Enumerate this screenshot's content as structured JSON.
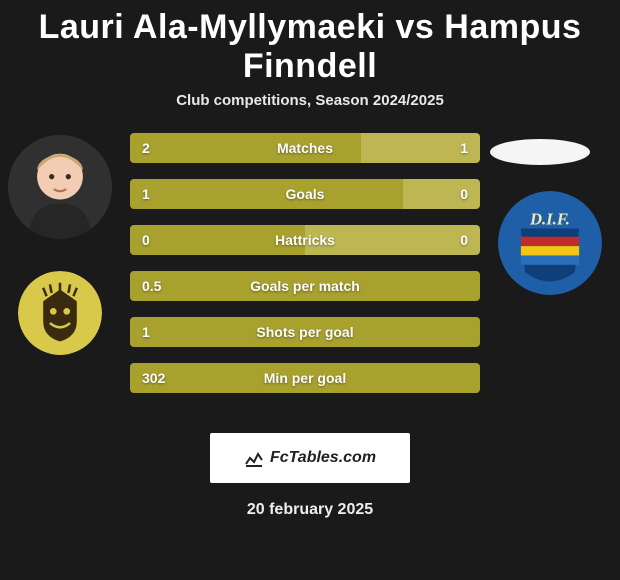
{
  "title": "Lauri Ala-Myllymaeki vs Hampus Finndell",
  "subtitle": "Club competitions, Season 2024/2025",
  "date": "20 february 2025",
  "branding": "FcTables.com",
  "colors": {
    "bar_olive": "#a8a12e",
    "bar_olive_light": "#bdb653",
    "bar_mid_overlay": "#9b942a",
    "bg": "#1a1a1a",
    "oval": "#f5f5f5",
    "team_left_bg": "#d9c94a",
    "team_left_fg": "#3a2a10",
    "team_right_top": "#1f5fa8",
    "team_right_stripe1": "#c22b2b",
    "team_right_stripe2": "#f3c514",
    "team_right_stripe3": "#1f5fa8"
  },
  "bars": [
    {
      "label": "Matches",
      "left": "2",
      "right": "1",
      "left_pct": 66,
      "right_pct": 34
    },
    {
      "label": "Goals",
      "left": "1",
      "right": "0",
      "left_pct": 78,
      "right_pct": 22
    },
    {
      "label": "Hattricks",
      "left": "0",
      "right": "0",
      "left_pct": 50,
      "right_pct": 50
    },
    {
      "label": "Goals per match",
      "left": "0.5",
      "right": "",
      "left_pct": 100,
      "right_pct": 0
    },
    {
      "label": "Shots per goal",
      "left": "1",
      "right": "",
      "left_pct": 100,
      "right_pct": 0
    },
    {
      "label": "Min per goal",
      "left": "302",
      "right": "",
      "left_pct": 100,
      "right_pct": 0
    }
  ],
  "team_right_text": "D.I.F."
}
